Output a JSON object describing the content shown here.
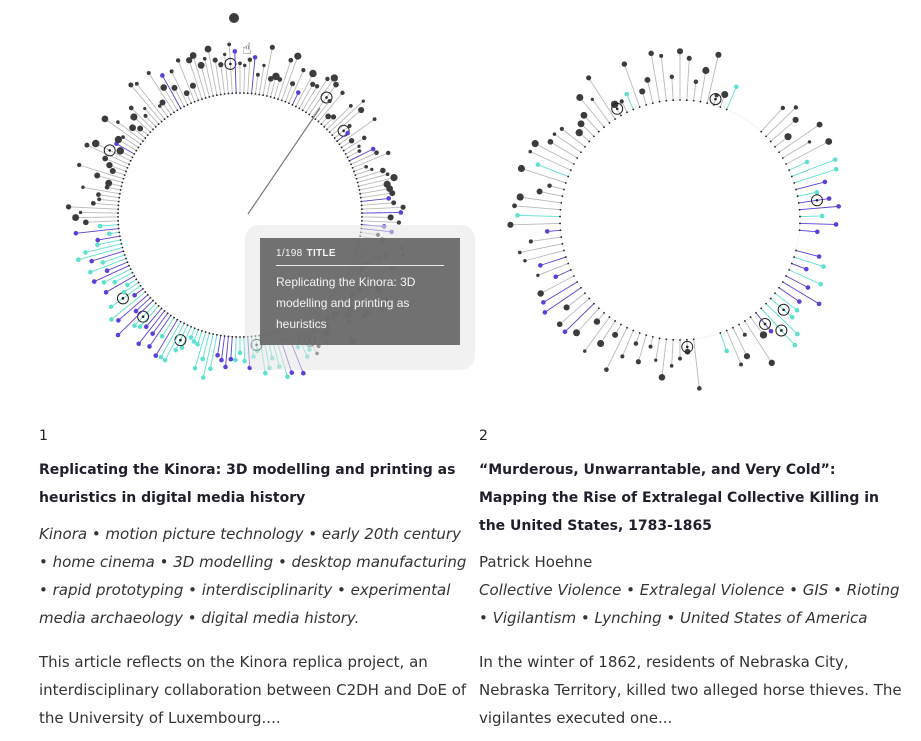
{
  "colors": {
    "dark": "#3c3c3c",
    "grey_line": "#b9b9b9",
    "purple": "#5b3fd6",
    "cyan": "#5ce0cf",
    "ring_outline": "#222222",
    "text": "#1f1f2b"
  },
  "cards": [
    {
      "number": "1",
      "title": "Replicating the Kinora: 3D modelling and printing as heuristics in digital media history",
      "author": "",
      "keywords": "Kinora • motion picture technology • early 20th century • home cinema • 3D modelling • desktop manufacturing • rapid prototyping • interdisciplinarity • experimental media archaeology • digital media history.",
      "abstract": "This article reflects on the Kinora replica project, an interdisciplinary collaboration between C2DH and DoE of the University of Luxembourg...."
    },
    {
      "number": "2",
      "title": "“Murderous, Unwarrantable, and Very Cold”: Mapping the Rise of Extralegal Collective Killing in the United States, 1783-1865",
      "author": "Patrick Hoehne",
      "keywords": "Collective Violence • Extralegal Violence • GIS • Rioting • Vigilantism • Lynching • United States of America",
      "abstract": "In the winter of 1862, residents of Nebraska City, Nebraska Territory, killed two alleged horse thieves. The vigilantes executed one..."
    }
  ],
  "tooltip": {
    "counter": "1/198",
    "label": "TITLE",
    "text": "Replicating the Kinora: 3D modelling and printing as heuristics"
  },
  "icons": {
    "cursor": "hand-pointer-icon"
  }
}
